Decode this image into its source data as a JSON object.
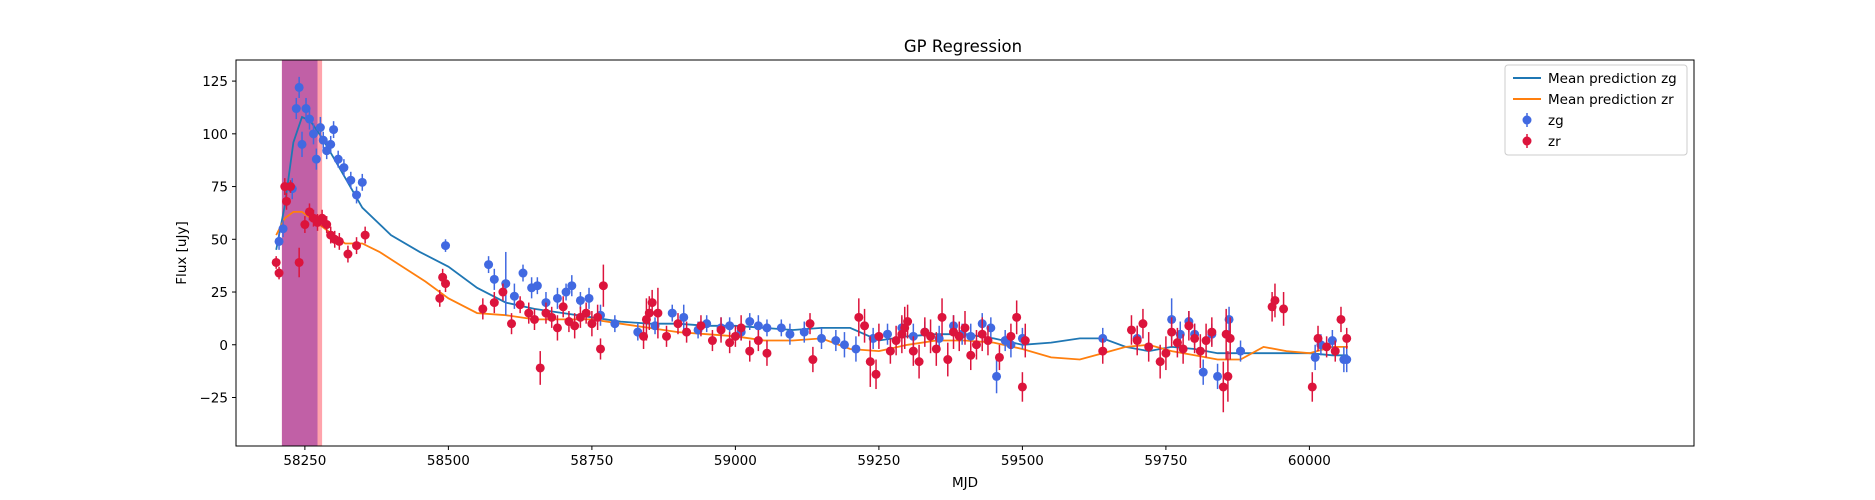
{
  "chart_data": {
    "type": "scatter",
    "title": "GP Regression",
    "xlabel": "MJD",
    "ylabel": "Flux [uJy]",
    "xlim": [
      58130,
      60670
    ],
    "ylim": [
      -48,
      135
    ],
    "xticks": [
      58250,
      58500,
      58750,
      59000,
      59250,
      59500,
      59750,
      60000
    ],
    "xtick_labels": [
      "58250",
      "58500",
      "58750",
      "59000",
      "59250",
      "59500",
      "59750",
      "60000"
    ],
    "yticks": [
      -25,
      0,
      25,
      50,
      75,
      100,
      125
    ],
    "ytick_labels": [
      "−25",
      "0",
      "25",
      "50",
      "75",
      "100",
      "125"
    ],
    "shaded_regions": [
      {
        "x0": 58210,
        "x1": 58280,
        "color": "#ffa3ac"
      },
      {
        "x0": 58210,
        "x1": 58272,
        "color": "#c160a6"
      }
    ],
    "legend_position": "upper-right",
    "series": [
      {
        "name": "Mean prediction zg",
        "kind": "line",
        "color": "#1f77b4",
        "x": [
          58200,
          58215,
          58230,
          58245,
          58260,
          58280,
          58310,
          58350,
          58400,
          58450,
          58500,
          58550,
          58600,
          58650,
          58700,
          58750,
          58800,
          58850,
          58900,
          58950,
          59000,
          59050,
          59100,
          59150,
          59200,
          59250,
          59300,
          59350,
          59400,
          59450,
          59500,
          59550,
          59600,
          59640,
          59680,
          59720,
          59760,
          59800,
          59840,
          59880,
          59920,
          59960,
          60000,
          60040,
          60067
        ],
        "y": [
          45,
          66,
          96,
          108,
          106,
          98,
          84,
          65,
          52,
          44,
          37,
          27,
          20,
          17,
          15,
          13,
          11,
          10,
          10,
          9,
          9,
          8,
          7,
          8,
          8,
          2,
          4,
          5,
          5,
          3,
          0,
          1,
          3,
          3,
          -1,
          -3,
          -1,
          -2,
          -4,
          -4,
          -4,
          -4,
          -4,
          -5,
          -5
        ]
      },
      {
        "name": "Mean prediction zr",
        "kind": "line",
        "color": "#ff7f0e",
        "x": [
          58200,
          58215,
          58230,
          58245,
          58260,
          58280,
          58300,
          58320,
          58350,
          58380,
          58420,
          58460,
          58500,
          58550,
          58600,
          58650,
          58700,
          58750,
          58800,
          58850,
          58900,
          58950,
          59000,
          59050,
          59100,
          59150,
          59200,
          59250,
          59300,
          59350,
          59400,
          59450,
          59500,
          59550,
          59600,
          59640,
          59680,
          59720,
          59760,
          59800,
          59840,
          59880,
          59920,
          59960,
          60000,
          60040,
          60067
        ],
        "y": [
          52,
          60,
          63,
          63,
          60,
          56,
          52,
          48,
          48,
          44,
          37,
          30,
          22,
          15,
          14,
          12,
          12,
          12,
          10,
          8,
          6,
          5,
          4,
          2,
          2,
          3,
          -2,
          -3,
          0,
          2,
          2,
          1,
          -2,
          -6,
          -7,
          -4,
          -1,
          0,
          -3,
          -5,
          -7,
          -7,
          -1,
          -3,
          -4,
          -1,
          -1
        ]
      },
      {
        "name": "zg",
        "kind": "errorbar",
        "color": "#4169e1",
        "x": [
          58205,
          58212,
          58228,
          58235,
          58240,
          58245,
          58252,
          58258,
          58265,
          58270,
          58277,
          58282,
          58288,
          58295,
          58300,
          58308,
          58318,
          58330,
          58340,
          58350,
          58495,
          58570,
          58580,
          58600,
          58615,
          58630,
          58645,
          58655,
          58670,
          58690,
          58705,
          58715,
          58730,
          58745,
          58765,
          58790,
          58830,
          58860,
          58890,
          58910,
          58935,
          58950,
          58975,
          58990,
          59010,
          59025,
          59040,
          59055,
          59080,
          59095,
          59120,
          59150,
          59175,
          59190,
          59210,
          59240,
          59265,
          59290,
          59310,
          59330,
          59355,
          59380,
          59395,
          59410,
          59430,
          59445,
          59455,
          59470,
          59480,
          59500,
          59640,
          59700,
          59760,
          59775,
          59790,
          59800,
          59815,
          59830,
          59840,
          59860,
          59880,
          60010,
          60020,
          60040,
          60060,
          60065
        ],
        "y": [
          49,
          55,
          74,
          112,
          122,
          95,
          112,
          107,
          100,
          88,
          103,
          97,
          92,
          95,
          102,
          88,
          84,
          78,
          71,
          77,
          47,
          38,
          31,
          29,
          23,
          34,
          27,
          28,
          20,
          22,
          25,
          28,
          21,
          22,
          14,
          10,
          6,
          9,
          15,
          13,
          7,
          10,
          8,
          9,
          6,
          11,
          9,
          8,
          8,
          5,
          6,
          3,
          2,
          0,
          -2,
          3,
          5,
          8,
          4,
          6,
          3,
          9,
          5,
          4,
          10,
          8,
          -15,
          2,
          0,
          3,
          3,
          3,
          12,
          5,
          11,
          5,
          -13,
          5,
          -15,
          12,
          -3,
          -6,
          0,
          2,
          -7,
          -7
        ],
        "err": [
          4,
          4,
          5,
          5,
          5,
          6,
          5,
          5,
          5,
          5,
          5,
          4,
          4,
          4,
          4,
          4,
          4,
          4,
          4,
          4,
          3,
          4,
          5,
          15,
          6,
          4,
          5,
          4,
          5,
          5,
          4,
          5,
          4,
          5,
          5,
          4,
          4,
          4,
          4,
          6,
          4,
          4,
          5,
          4,
          4,
          4,
          5,
          4,
          4,
          5,
          5,
          5,
          5,
          6,
          6,
          5,
          5,
          5,
          6,
          5,
          6,
          5,
          5,
          6,
          5,
          5,
          8,
          5,
          6,
          5,
          5,
          6,
          10,
          6,
          5,
          5,
          6,
          5,
          6,
          6,
          5,
          6,
          5,
          5,
          6,
          6
        ]
      },
      {
        "name": "zr",
        "kind": "errorbar",
        "color": "#dc143c",
        "x": [
          58200,
          58205,
          58215,
          58218,
          58225,
          58240,
          58250,
          58258,
          58265,
          58272,
          58280,
          58288,
          58295,
          58302,
          58310,
          58325,
          58340,
          58355,
          58485,
          58490,
          58495,
          58560,
          58580,
          58595,
          58610,
          58625,
          58640,
          58650,
          58660,
          58670,
          58680,
          58690,
          58700,
          58710,
          58720,
          58730,
          58740,
          58750,
          58760,
          58765,
          58770,
          58840,
          58845,
          58850,
          58855,
          58865,
          58880,
          58900,
          58915,
          58940,
          58960,
          58975,
          58990,
          59000,
          59010,
          59025,
          59040,
          59055,
          59130,
          59135,
          59215,
          59225,
          59235,
          59245,
          59250,
          59270,
          59280,
          59290,
          59295,
          59300,
          59310,
          59320,
          59330,
          59340,
          59350,
          59360,
          59370,
          59380,
          59390,
          59400,
          59410,
          59420,
          59430,
          59440,
          59460,
          59480,
          59490,
          59500,
          59505,
          59640,
          59690,
          59700,
          59710,
          59720,
          59740,
          59750,
          59760,
          59770,
          59780,
          59790,
          59800,
          59810,
          59820,
          59830,
          59850,
          59855,
          59858,
          59862,
          59935,
          59940,
          59955,
          60005,
          60015,
          60030,
          60045,
          60055,
          60065
        ],
        "y": [
          39,
          34,
          75,
          68,
          75,
          39,
          57,
          63,
          60,
          58,
          60,
          57,
          52,
          50,
          49,
          43,
          47,
          52,
          22,
          32,
          29,
          17,
          20,
          25,
          10,
          19,
          15,
          12,
          -11,
          15,
          13,
          8,
          18,
          11,
          9,
          13,
          15,
          10,
          13,
          -2,
          28,
          4,
          12,
          15,
          20,
          15,
          4,
          10,
          6,
          9,
          2,
          7,
          1,
          4,
          8,
          -3,
          2,
          -4,
          10,
          -7,
          13,
          9,
          -8,
          -14,
          4,
          -3,
          2,
          5,
          8,
          11,
          -3,
          -8,
          6,
          4,
          -2,
          13,
          -7,
          6,
          4,
          8,
          -5,
          0,
          5,
          2,
          -6,
          4,
          13,
          -20,
          2,
          -3,
          7,
          2,
          10,
          -1,
          -8,
          -4,
          6,
          1,
          -2,
          9,
          3,
          -3,
          2,
          6,
          -20,
          5,
          -15,
          3,
          18,
          21,
          17,
          -20,
          3,
          -1,
          -3,
          12,
          3
        ],
        "err": [
          3,
          3,
          4,
          4,
          3,
          7,
          4,
          4,
          4,
          4,
          4,
          4,
          4,
          4,
          4,
          4,
          4,
          4,
          4,
          4,
          4,
          5,
          5,
          4,
          5,
          4,
          5,
          5,
          8,
          5,
          5,
          6,
          5,
          5,
          6,
          5,
          5,
          6,
          6,
          5,
          10,
          6,
          10,
          8,
          6,
          12,
          5,
          5,
          5,
          5,
          5,
          6,
          5,
          5,
          6,
          5,
          5,
          6,
          5,
          6,
          9,
          8,
          12,
          7,
          6,
          6,
          7,
          9,
          10,
          8,
          7,
          8,
          7,
          8,
          8,
          9,
          8,
          8,
          7,
          8,
          7,
          7,
          8,
          7,
          6,
          6,
          8,
          7,
          8,
          6,
          7,
          7,
          7,
          7,
          8,
          8,
          7,
          7,
          7,
          7,
          7,
          8,
          8,
          7,
          12,
          12,
          12,
          10,
          7,
          8,
          8,
          7,
          6,
          5,
          5,
          6,
          5
        ]
      }
    ]
  }
}
